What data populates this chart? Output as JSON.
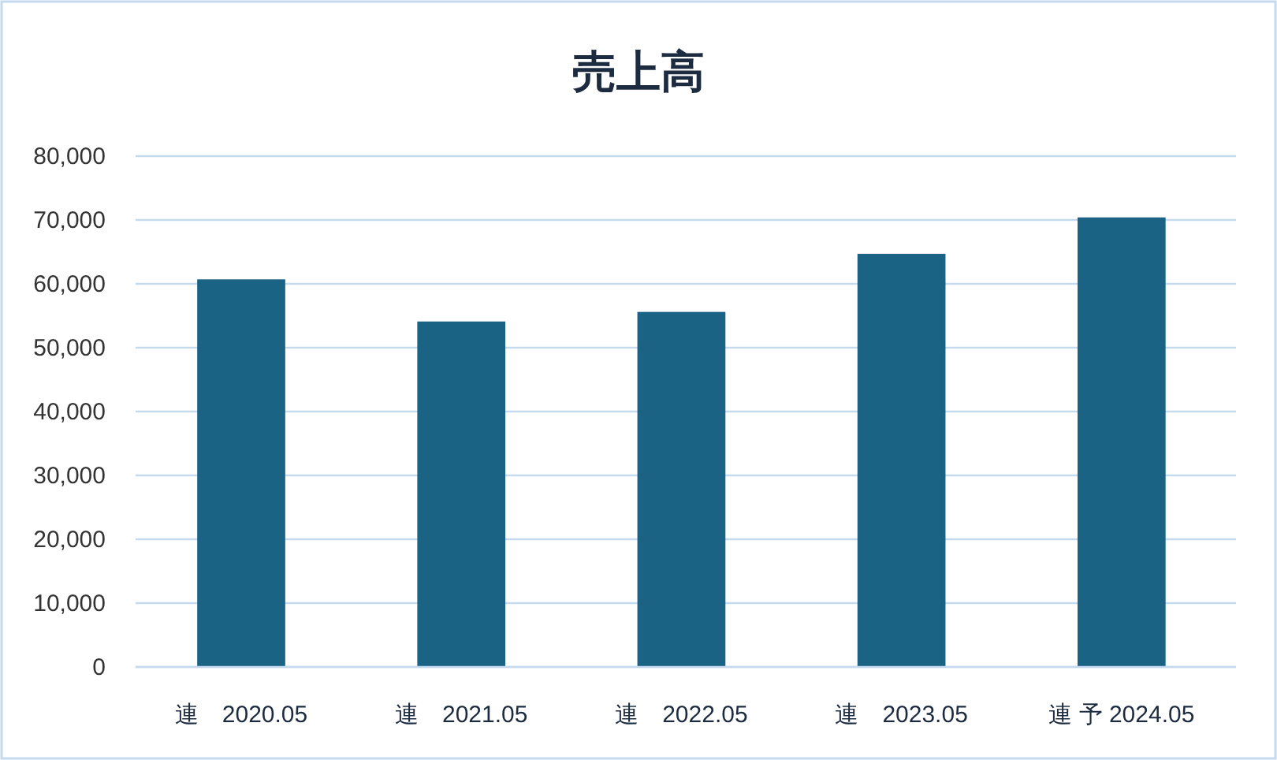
{
  "chart_data": {
    "type": "bar",
    "title": "売上高",
    "categories": [
      "連　2020.05",
      "連　2021.05",
      "連　2022.05",
      "連　2023.05",
      "連 予 2024.05"
    ],
    "values": [
      60700,
      54100,
      55600,
      64700,
      70400
    ],
    "color": "#1a6385",
    "ylim": [
      0,
      80000
    ],
    "yticks": [
      {
        "value": 0,
        "label": "0"
      },
      {
        "value": 10000,
        "label": "10,000"
      },
      {
        "value": 20000,
        "label": "20,000"
      },
      {
        "value": 30000,
        "label": "30,000"
      },
      {
        "value": 40000,
        "label": "40,000"
      },
      {
        "value": 50000,
        "label": "50,000"
      },
      {
        "value": 60000,
        "label": "60,000"
      },
      {
        "value": 70000,
        "label": "70,000"
      },
      {
        "value": 80000,
        "label": "80,000"
      }
    ],
    "grid": "y"
  }
}
